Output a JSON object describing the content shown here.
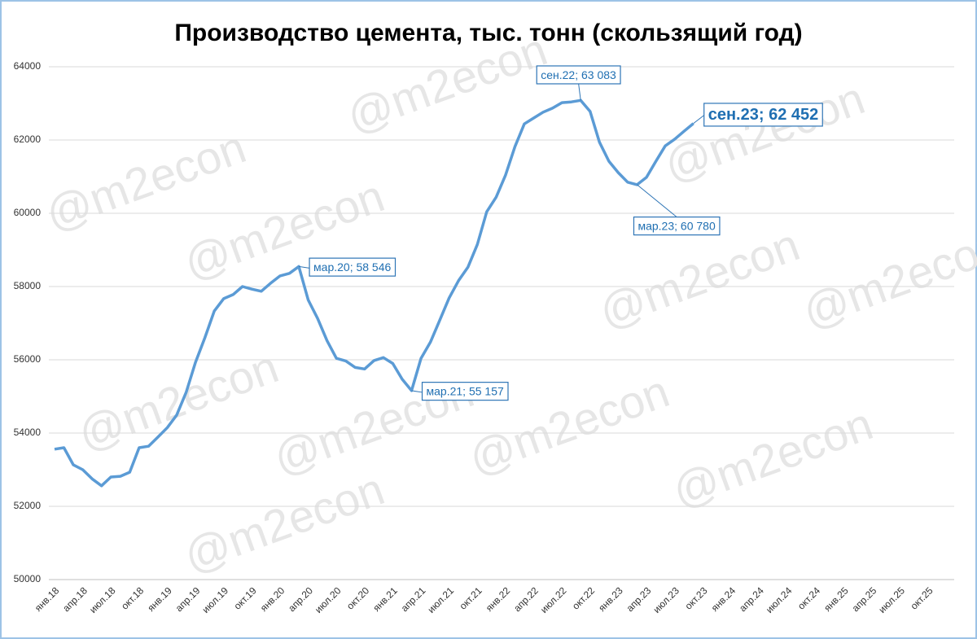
{
  "chart_data": {
    "type": "line",
    "title": "Производство цемента, тыс. тонн (скользящий год)",
    "watermark": "@m2econ",
    "categories": [
      "янв.18",
      null,
      null,
      "апр.18",
      null,
      null,
      "июл.18",
      null,
      null,
      "окт.18",
      null,
      null,
      "янв.19",
      null,
      null,
      "апр.19",
      null,
      null,
      "июл.19",
      null,
      null,
      "окт.19",
      null,
      null,
      "янв.20",
      null,
      null,
      "апр.20",
      null,
      null,
      "июл.20",
      null,
      null,
      "окт.20",
      null,
      null,
      "янв.21",
      null,
      null,
      "апр.21",
      null,
      null,
      "июл.21",
      null,
      null,
      "окт.21",
      null,
      null,
      "янв.22",
      null,
      null,
      "апр.22",
      null,
      null,
      "июл.22",
      null,
      null,
      "окт.22",
      null,
      null,
      "янв.23",
      null,
      null,
      "апр.23",
      null,
      null,
      "июл.23",
      null,
      null,
      "окт.23",
      null,
      null,
      "янв.24",
      null,
      null,
      "апр.24",
      null,
      null,
      "июл.24",
      null,
      null,
      "окт.24",
      null,
      null,
      "янв.25",
      null,
      null,
      "апр.25",
      null,
      null,
      "июл.25",
      null,
      null,
      "окт.25",
      null,
      null
    ],
    "values": [
      53560,
      53600,
      53130,
      53000,
      52750,
      52560,
      52800,
      52820,
      52930,
      53600,
      53640,
      53890,
      54150,
      54490,
      55110,
      55930,
      56600,
      57330,
      57670,
      57780,
      58000,
      57930,
      57870,
      58090,
      58290,
      58360,
      58546,
      57630,
      57130,
      56520,
      56040,
      55970,
      55790,
      55750,
      55980,
      56060,
      55900,
      55470,
      55157,
      56040,
      56480,
      57080,
      57690,
      58160,
      58530,
      59150,
      60040,
      60440,
      61040,
      61820,
      62440,
      62600,
      62760,
      62870,
      63020,
      63040,
      63083,
      62780,
      61940,
      61420,
      61110,
      60850,
      60780,
      60980,
      61420,
      61840,
      62020,
      62240,
      62452,
      null,
      null,
      null,
      null,
      null,
      null,
      null,
      null,
      null,
      null,
      null,
      null,
      null,
      null,
      null,
      null,
      null,
      null,
      null,
      null,
      null,
      null,
      null,
      null,
      null,
      null,
      null
    ],
    "value_labels": [
      null,
      null,
      null,
      null,
      null,
      null,
      null,
      null,
      null,
      null,
      null,
      null,
      null,
      null,
      null,
      null,
      null,
      null,
      null,
      null,
      null,
      null,
      null,
      null,
      null,
      null,
      "мар.20; 58 546",
      null,
      null,
      null,
      null,
      null,
      null,
      null,
      null,
      null,
      null,
      null,
      "мар.21; 55 157",
      null,
      null,
      null,
      null,
      null,
      null,
      null,
      null,
      null,
      null,
      null,
      null,
      null,
      null,
      null,
      null,
      null,
      "сен.22; 63 083",
      null,
      null,
      null,
      null,
      null,
      "мар.23; 60 780",
      null,
      null,
      null,
      null,
      null,
      "сен.23; 62 452",
      null,
      null,
      null,
      null,
      null,
      null,
      null,
      null,
      null,
      null,
      null,
      null,
      null,
      null,
      null,
      null,
      null,
      null,
      null,
      null,
      null,
      null,
      null,
      null,
      null,
      null,
      null
    ],
    "color": "#5b9bd5",
    "ylim": [
      50000,
      64000
    ],
    "yticks": [
      50000,
      52000,
      54000,
      56000,
      58000,
      60000,
      62000,
      64000
    ],
    "grid": true
  }
}
